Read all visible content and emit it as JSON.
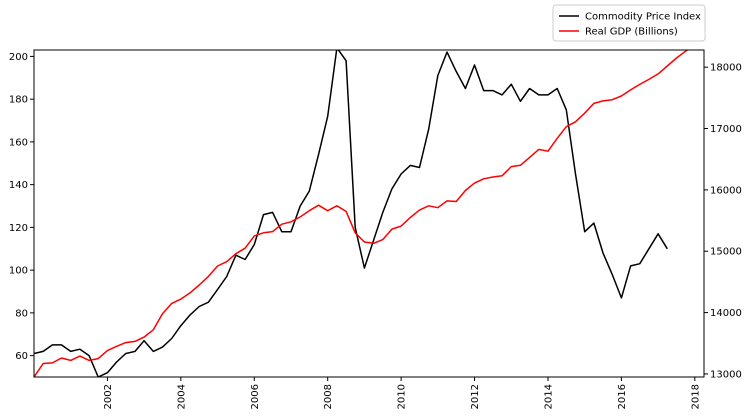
{
  "chart_data": {
    "type": "line",
    "x_axis": {
      "kind": "year",
      "range": [
        2000.0,
        2018.25
      ],
      "ticks": [
        "2002",
        "2004",
        "2006",
        "2008",
        "2010",
        "2012",
        "2014",
        "2016",
        "2018"
      ]
    },
    "y_left": {
      "range": [
        50,
        203
      ],
      "ticks": [
        60,
        80,
        100,
        120,
        140,
        160,
        180,
        200
      ]
    },
    "y_right": {
      "range": [
        12950,
        18280
      ],
      "ticks": [
        13000,
        14000,
        15000,
        16000,
        17000,
        18000
      ]
    },
    "legend": {
      "placement": "top-right-outside"
    },
    "grid": false,
    "series": [
      {
        "name": "Commodity Price Index",
        "color": "#000000",
        "axis": "left",
        "points": [
          [
            2000.0,
            61
          ],
          [
            2000.25,
            62
          ],
          [
            2000.5,
            65
          ],
          [
            2000.75,
            65
          ],
          [
            2001.0,
            62
          ],
          [
            2001.25,
            63
          ],
          [
            2001.5,
            60
          ],
          [
            2001.75,
            50
          ],
          [
            2002.0,
            52
          ],
          [
            2002.25,
            57
          ],
          [
            2002.5,
            61
          ],
          [
            2002.75,
            62
          ],
          [
            2003.0,
            67
          ],
          [
            2003.25,
            62
          ],
          [
            2003.5,
            64
          ],
          [
            2003.75,
            68
          ],
          [
            2004.0,
            74
          ],
          [
            2004.25,
            79
          ],
          [
            2004.5,
            83
          ],
          [
            2004.75,
            85
          ],
          [
            2005.0,
            91
          ],
          [
            2005.25,
            97
          ],
          [
            2005.5,
            107
          ],
          [
            2005.75,
            105
          ],
          [
            2006.0,
            112
          ],
          [
            2006.25,
            126
          ],
          [
            2006.5,
            127
          ],
          [
            2006.75,
            118
          ],
          [
            2007.0,
            118
          ],
          [
            2007.25,
            130
          ],
          [
            2007.5,
            137
          ],
          [
            2007.75,
            154
          ],
          [
            2008.0,
            172
          ],
          [
            2008.25,
            204
          ],
          [
            2008.5,
            198
          ],
          [
            2008.75,
            120
          ],
          [
            2009.0,
            101
          ],
          [
            2009.25,
            114
          ],
          [
            2009.5,
            127
          ],
          [
            2009.75,
            138
          ],
          [
            2010.0,
            145
          ],
          [
            2010.25,
            149
          ],
          [
            2010.5,
            148
          ],
          [
            2010.75,
            166
          ],
          [
            2011.0,
            191
          ],
          [
            2011.25,
            202
          ],
          [
            2011.5,
            193
          ],
          [
            2011.75,
            185
          ],
          [
            2012.0,
            196
          ],
          [
            2012.25,
            184
          ],
          [
            2012.5,
            184
          ],
          [
            2012.75,
            182
          ],
          [
            2013.0,
            187
          ],
          [
            2013.25,
            179
          ],
          [
            2013.5,
            185
          ],
          [
            2013.75,
            182
          ],
          [
            2014.0,
            182
          ],
          [
            2014.25,
            185
          ],
          [
            2014.5,
            175
          ],
          [
            2014.75,
            145
          ],
          [
            2015.0,
            118
          ],
          [
            2015.25,
            122
          ],
          [
            2015.5,
            108
          ],
          [
            2015.75,
            98
          ],
          [
            2016.0,
            87
          ],
          [
            2016.25,
            102
          ],
          [
            2016.5,
            103
          ],
          [
            2016.75,
            110
          ],
          [
            2017.0,
            117
          ],
          [
            2017.25,
            110
          ]
        ]
      },
      {
        "name": "Real GDP (Billions)",
        "color": "#ff0000",
        "axis": "right",
        "points": [
          [
            2000.0,
            12950
          ],
          [
            2000.25,
            13170
          ],
          [
            2000.5,
            13180
          ],
          [
            2000.75,
            13260
          ],
          [
            2001.0,
            13220
          ],
          [
            2001.25,
            13290
          ],
          [
            2001.5,
            13220
          ],
          [
            2001.75,
            13250
          ],
          [
            2002.0,
            13380
          ],
          [
            2002.25,
            13450
          ],
          [
            2002.5,
            13510
          ],
          [
            2002.75,
            13530
          ],
          [
            2003.0,
            13600
          ],
          [
            2003.25,
            13720
          ],
          [
            2003.5,
            13980
          ],
          [
            2003.75,
            14150
          ],
          [
            2004.0,
            14220
          ],
          [
            2004.25,
            14320
          ],
          [
            2004.5,
            14450
          ],
          [
            2004.75,
            14590
          ],
          [
            2005.0,
            14760
          ],
          [
            2005.25,
            14830
          ],
          [
            2005.5,
            14960
          ],
          [
            2005.75,
            15050
          ],
          [
            2006.0,
            15250
          ],
          [
            2006.25,
            15300
          ],
          [
            2006.5,
            15320
          ],
          [
            2006.75,
            15440
          ],
          [
            2007.0,
            15480
          ],
          [
            2007.25,
            15560
          ],
          [
            2007.5,
            15660
          ],
          [
            2007.75,
            15750
          ],
          [
            2008.0,
            15660
          ],
          [
            2008.25,
            15740
          ],
          [
            2008.5,
            15650
          ],
          [
            2008.75,
            15300
          ],
          [
            2009.0,
            15150
          ],
          [
            2009.25,
            15130
          ],
          [
            2009.5,
            15190
          ],
          [
            2009.75,
            15360
          ],
          [
            2010.0,
            15410
          ],
          [
            2010.25,
            15550
          ],
          [
            2010.5,
            15670
          ],
          [
            2010.75,
            15740
          ],
          [
            2011.0,
            15710
          ],
          [
            2011.25,
            15820
          ],
          [
            2011.5,
            15810
          ],
          [
            2011.75,
            15990
          ],
          [
            2012.0,
            16110
          ],
          [
            2012.25,
            16180
          ],
          [
            2012.5,
            16210
          ],
          [
            2012.75,
            16230
          ],
          [
            2013.0,
            16380
          ],
          [
            2013.25,
            16400
          ],
          [
            2013.5,
            16530
          ],
          [
            2013.75,
            16660
          ],
          [
            2014.0,
            16630
          ],
          [
            2014.25,
            16840
          ],
          [
            2014.5,
            17030
          ],
          [
            2014.75,
            17110
          ],
          [
            2015.0,
            17250
          ],
          [
            2015.25,
            17410
          ],
          [
            2015.5,
            17450
          ],
          [
            2015.75,
            17470
          ],
          [
            2016.0,
            17530
          ],
          [
            2016.25,
            17630
          ],
          [
            2016.5,
            17720
          ],
          [
            2016.75,
            17800
          ],
          [
            2017.0,
            17890
          ],
          [
            2017.25,
            18020
          ],
          [
            2017.5,
            18150
          ],
          [
            2017.75,
            18260
          ],
          [
            2018.0,
            18370
          ]
        ]
      }
    ]
  }
}
